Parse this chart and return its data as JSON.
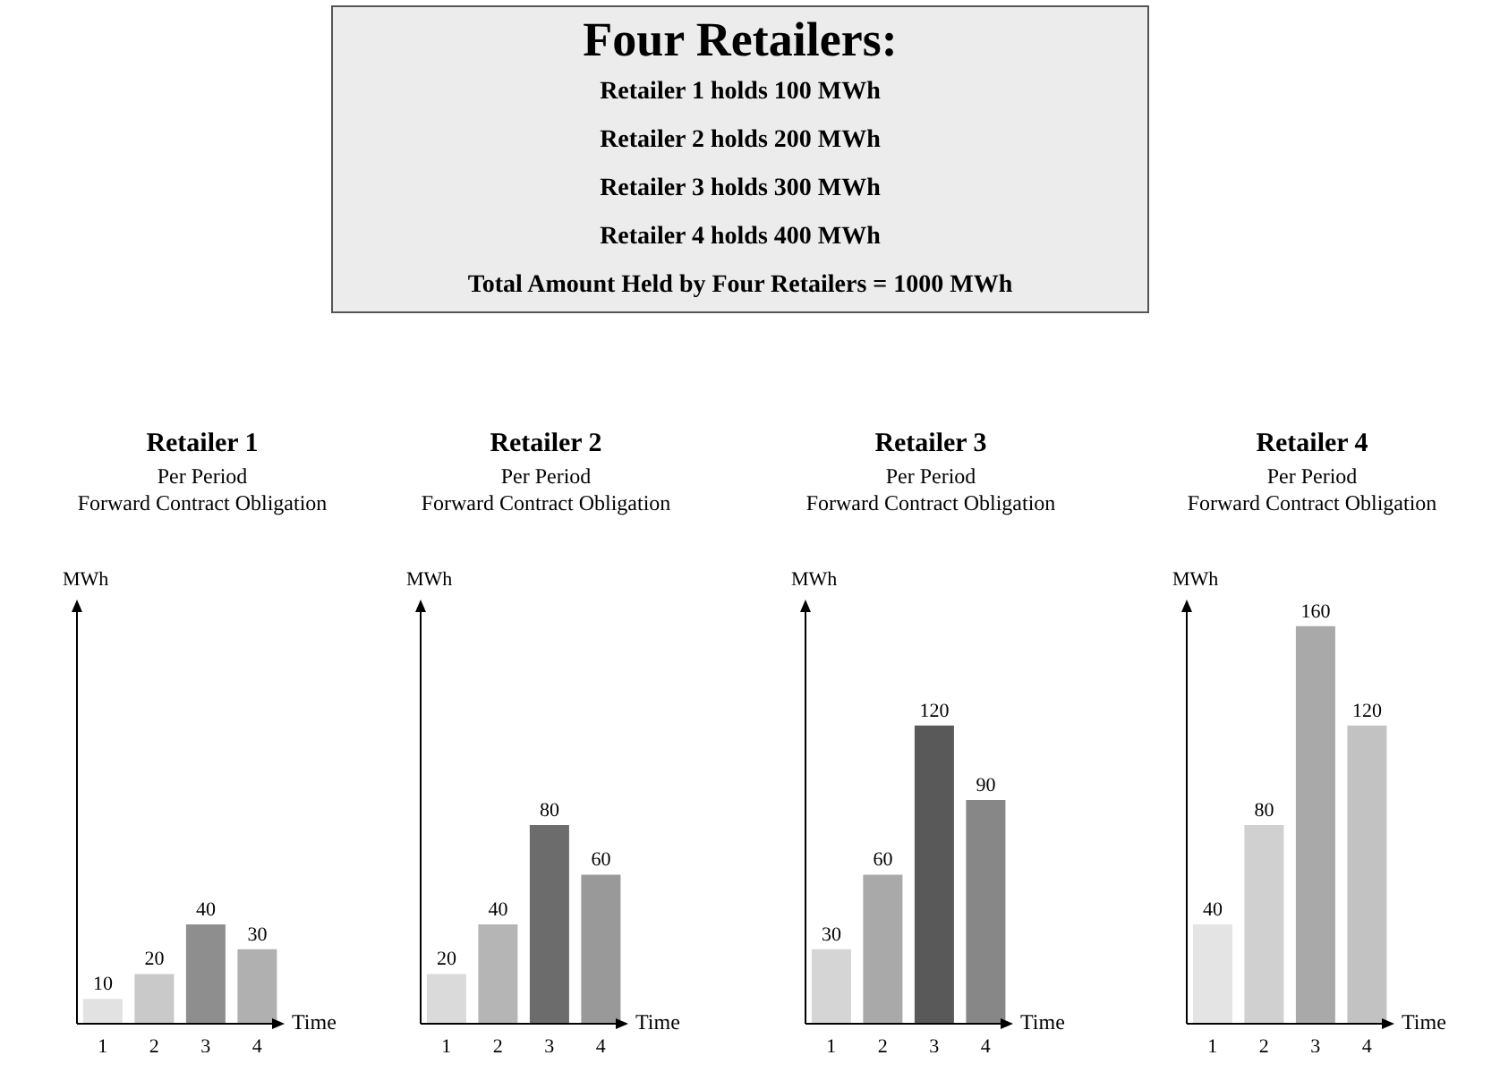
{
  "chart_data": [
    {
      "type": "other",
      "title": "Four Retailers:",
      "annotations": [
        "Retailer 1 holds 100 MWh",
        "Retailer 2 holds 200 MWh",
        "Retailer 3 holds 300 MWh",
        "Retailer 4 holds 400 MWh",
        "Total Amount Held by Four Retailers = 1000 MWh"
      ]
    },
    {
      "type": "bar",
      "title": "Retailer 1",
      "subtitle": "Per Period\nForward Contract Obligation",
      "xlabel": "Time",
      "ylabel": "MWh",
      "categories": [
        "1",
        "2",
        "3",
        "4"
      ],
      "values": [
        10,
        20,
        40,
        30
      ],
      "colors": [
        "#e2e2e2",
        "#c9c9c9",
        "#8e8e8e",
        "#b0b0b0"
      ],
      "ylim": [
        0,
        170
      ],
      "tick_labels": "x",
      "data_labels": true
    },
    {
      "type": "bar",
      "title": "Retailer 2",
      "subtitle": "Per Period\nForward Contract Obligation",
      "xlabel": "Time",
      "ylabel": "MWh",
      "categories": [
        "1",
        "2",
        "3",
        "4"
      ],
      "values": [
        20,
        40,
        80,
        60
      ],
      "colors": [
        "#dadada",
        "#b5b5b5",
        "#6c6c6c",
        "#999999"
      ],
      "ylim": [
        0,
        170
      ],
      "tick_labels": "x",
      "data_labels": true
    },
    {
      "type": "bar",
      "title": "Retailer 3",
      "subtitle": "Per Period\nForward Contract Obligation",
      "xlabel": "Time",
      "ylabel": "MWh",
      "categories": [
        "1",
        "2",
        "3",
        "4"
      ],
      "values": [
        30,
        60,
        120,
        90
      ],
      "colors": [
        "#d5d5d5",
        "#a9a9a9",
        "#595959",
        "#878787"
      ],
      "ylim": [
        0,
        170
      ],
      "tick_labels": "x",
      "data_labels": true
    },
    {
      "type": "bar",
      "title": "Retailer 4",
      "subtitle": "Per Period\nForward Contract Obligation",
      "xlabel": "Time",
      "ylabel": "MWh",
      "categories": [
        "1",
        "2",
        "3",
        "4"
      ],
      "values": [
        40,
        80,
        160,
        120
      ],
      "colors": [
        "#e4e4e4",
        "#d0d0d0",
        "#a9a9a9",
        "#c2c2c2"
      ],
      "ylim": [
        0,
        170
      ],
      "tick_labels": "x",
      "data_labels": true
    }
  ]
}
